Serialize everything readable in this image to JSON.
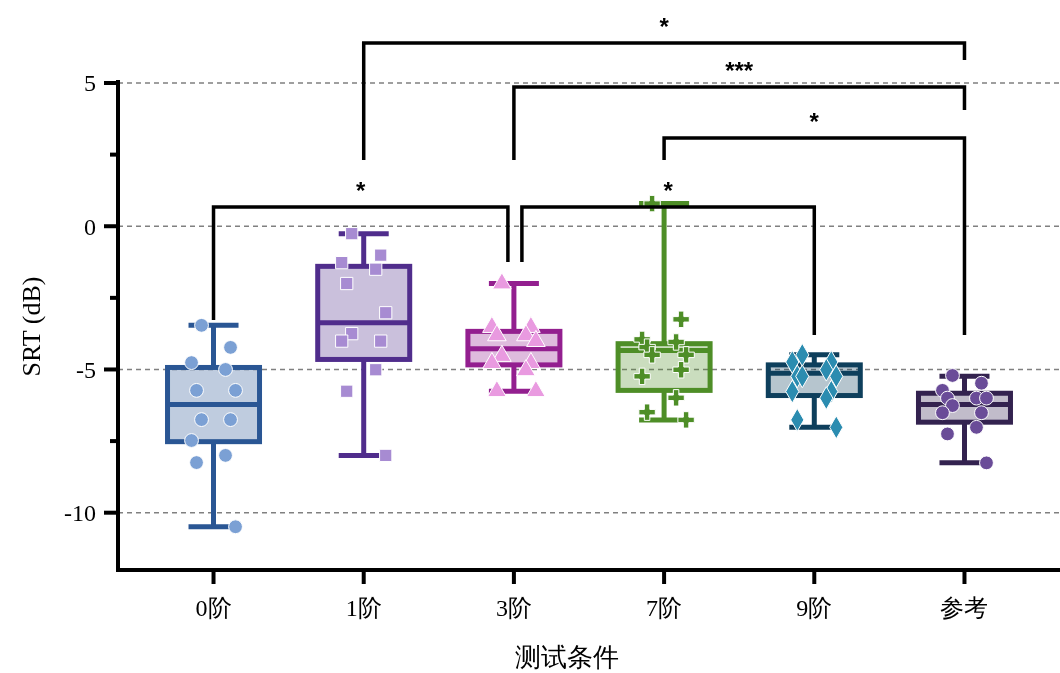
{
  "chart_data": {
    "type": "box",
    "xlabel": "测试条件",
    "ylabel": "SRT (dB)",
    "categories": [
      "0阶",
      "1阶",
      "3阶",
      "7阶",
      "9阶",
      "参考"
    ],
    "colors": [
      "#2a5694",
      "#502d8c",
      "#931f8f",
      "#4e8e27",
      "#0e3f5c",
      "#33224f"
    ],
    "boxes": [
      {
        "low": -10.49,
        "q1": -7.52,
        "median": -6.22,
        "q3": -4.93,
        "high": -3.46
      },
      {
        "low": -8.0,
        "q1": -4.65,
        "median": -3.37,
        "q3": -1.4,
        "high": -0.26
      },
      {
        "low": -5.76,
        "q1": -4.84,
        "median": -4.28,
        "q3": -3.67,
        "high": -2.0
      },
      {
        "low": -6.76,
        "q1": -5.73,
        "median": -4.34,
        "q3": -4.1,
        "high": 0.79
      },
      {
        "low": -7.02,
        "q1": -5.91,
        "median": -5.13,
        "q3": -4.84,
        "high": -4.49
      },
      {
        "low": -8.26,
        "q1": -6.84,
        "median": -6.22,
        "q3": -5.83,
        "high": -5.24
      }
    ],
    "series": [
      {
        "type": "scatter",
        "marker": "circle",
        "color": "#7ba0d4",
        "x": [
          "0阶",
          "0阶",
          "0阶",
          "0阶",
          "0阶",
          "0阶",
          "0阶",
          "0阶",
          "0阶",
          "0阶",
          "0阶",
          "0阶"
        ],
        "values": [
          -3.46,
          -4.23,
          -4.76,
          -5.0,
          -5.73,
          -5.73,
          -6.75,
          -6.75,
          -7.48,
          -8.0,
          -8.25,
          -10.49
        ]
      },
      {
        "type": "scatter",
        "marker": "square",
        "color": "#a78bd2",
        "x": [
          "1阶",
          "1阶",
          "1阶",
          "1阶",
          "1阶",
          "1阶",
          "1阶",
          "1阶",
          "1阶",
          "1阶",
          "1阶",
          "1阶"
        ],
        "values": [
          -0.26,
          -1.01,
          -1.27,
          -1.5,
          -2.0,
          -3.02,
          -3.75,
          -4.01,
          -4.01,
          -5.01,
          -5.76,
          -8.0
        ]
      },
      {
        "type": "scatter",
        "marker": "triangle",
        "color": "#e99ae0",
        "x": [
          "3阶",
          "3阶",
          "3阶",
          "3阶",
          "3阶",
          "3阶",
          "3阶",
          "3阶",
          "3阶",
          "3阶",
          "3阶",
          "3阶"
        ],
        "values": [
          -2.0,
          -3.52,
          -3.52,
          -3.81,
          -3.81,
          -4.01,
          -4.53,
          -4.78,
          -4.78,
          -5.03,
          -5.76,
          -5.76
        ]
      },
      {
        "type": "scatter",
        "marker": "cross",
        "color": "#4e8e27",
        "x": [
          "7阶",
          "7阶",
          "7阶",
          "7阶",
          "7阶",
          "7阶",
          "7阶",
          "7阶",
          "7阶",
          "7阶",
          "7阶",
          "7阶"
        ],
        "values": [
          0.79,
          -3.25,
          -3.95,
          -4.04,
          -4.22,
          -4.49,
          -4.49,
          -5.01,
          -5.24,
          -5.99,
          -6.49,
          -6.76
        ]
      },
      {
        "type": "scatter",
        "marker": "diamond",
        "color": "#2b8cb0",
        "x": [
          "9阶",
          "9阶",
          "9阶",
          "9阶",
          "9阶",
          "9阶",
          "9阶",
          "9阶",
          "9阶",
          "9阶",
          "9阶",
          "9阶"
        ],
        "values": [
          -4.49,
          -4.74,
          -4.74,
          -5.01,
          -5.24,
          -5.24,
          -5.24,
          -5.77,
          -5.77,
          -6.0,
          -6.76,
          -7.02
        ]
      },
      {
        "type": "scatter",
        "marker": "circle",
        "color": "#6a4c98",
        "x": [
          "参考",
          "参考",
          "参考",
          "参考",
          "参考",
          "参考",
          "参考",
          "参考",
          "参考",
          "参考",
          "参考",
          "参考"
        ],
        "values": [
          -5.21,
          -5.48,
          -5.73,
          -6.0,
          -6.0,
          -6.0,
          -6.26,
          -6.51,
          -6.51,
          -7.02,
          -7.25,
          -8.26
        ]
      }
    ],
    "ylim": [
      -12,
      5
    ],
    "yticks": [
      -10,
      {
        "value": -7.5,
        "label": null
      },
      -5,
      {
        "value": -2.5,
        "label": null
      },
      0,
      {
        "value": 2.5,
        "label": null
      },
      5
    ],
    "grid": "y",
    "annotations": [
      "*",
      "***",
      "*",
      "*",
      "*"
    ]
  }
}
